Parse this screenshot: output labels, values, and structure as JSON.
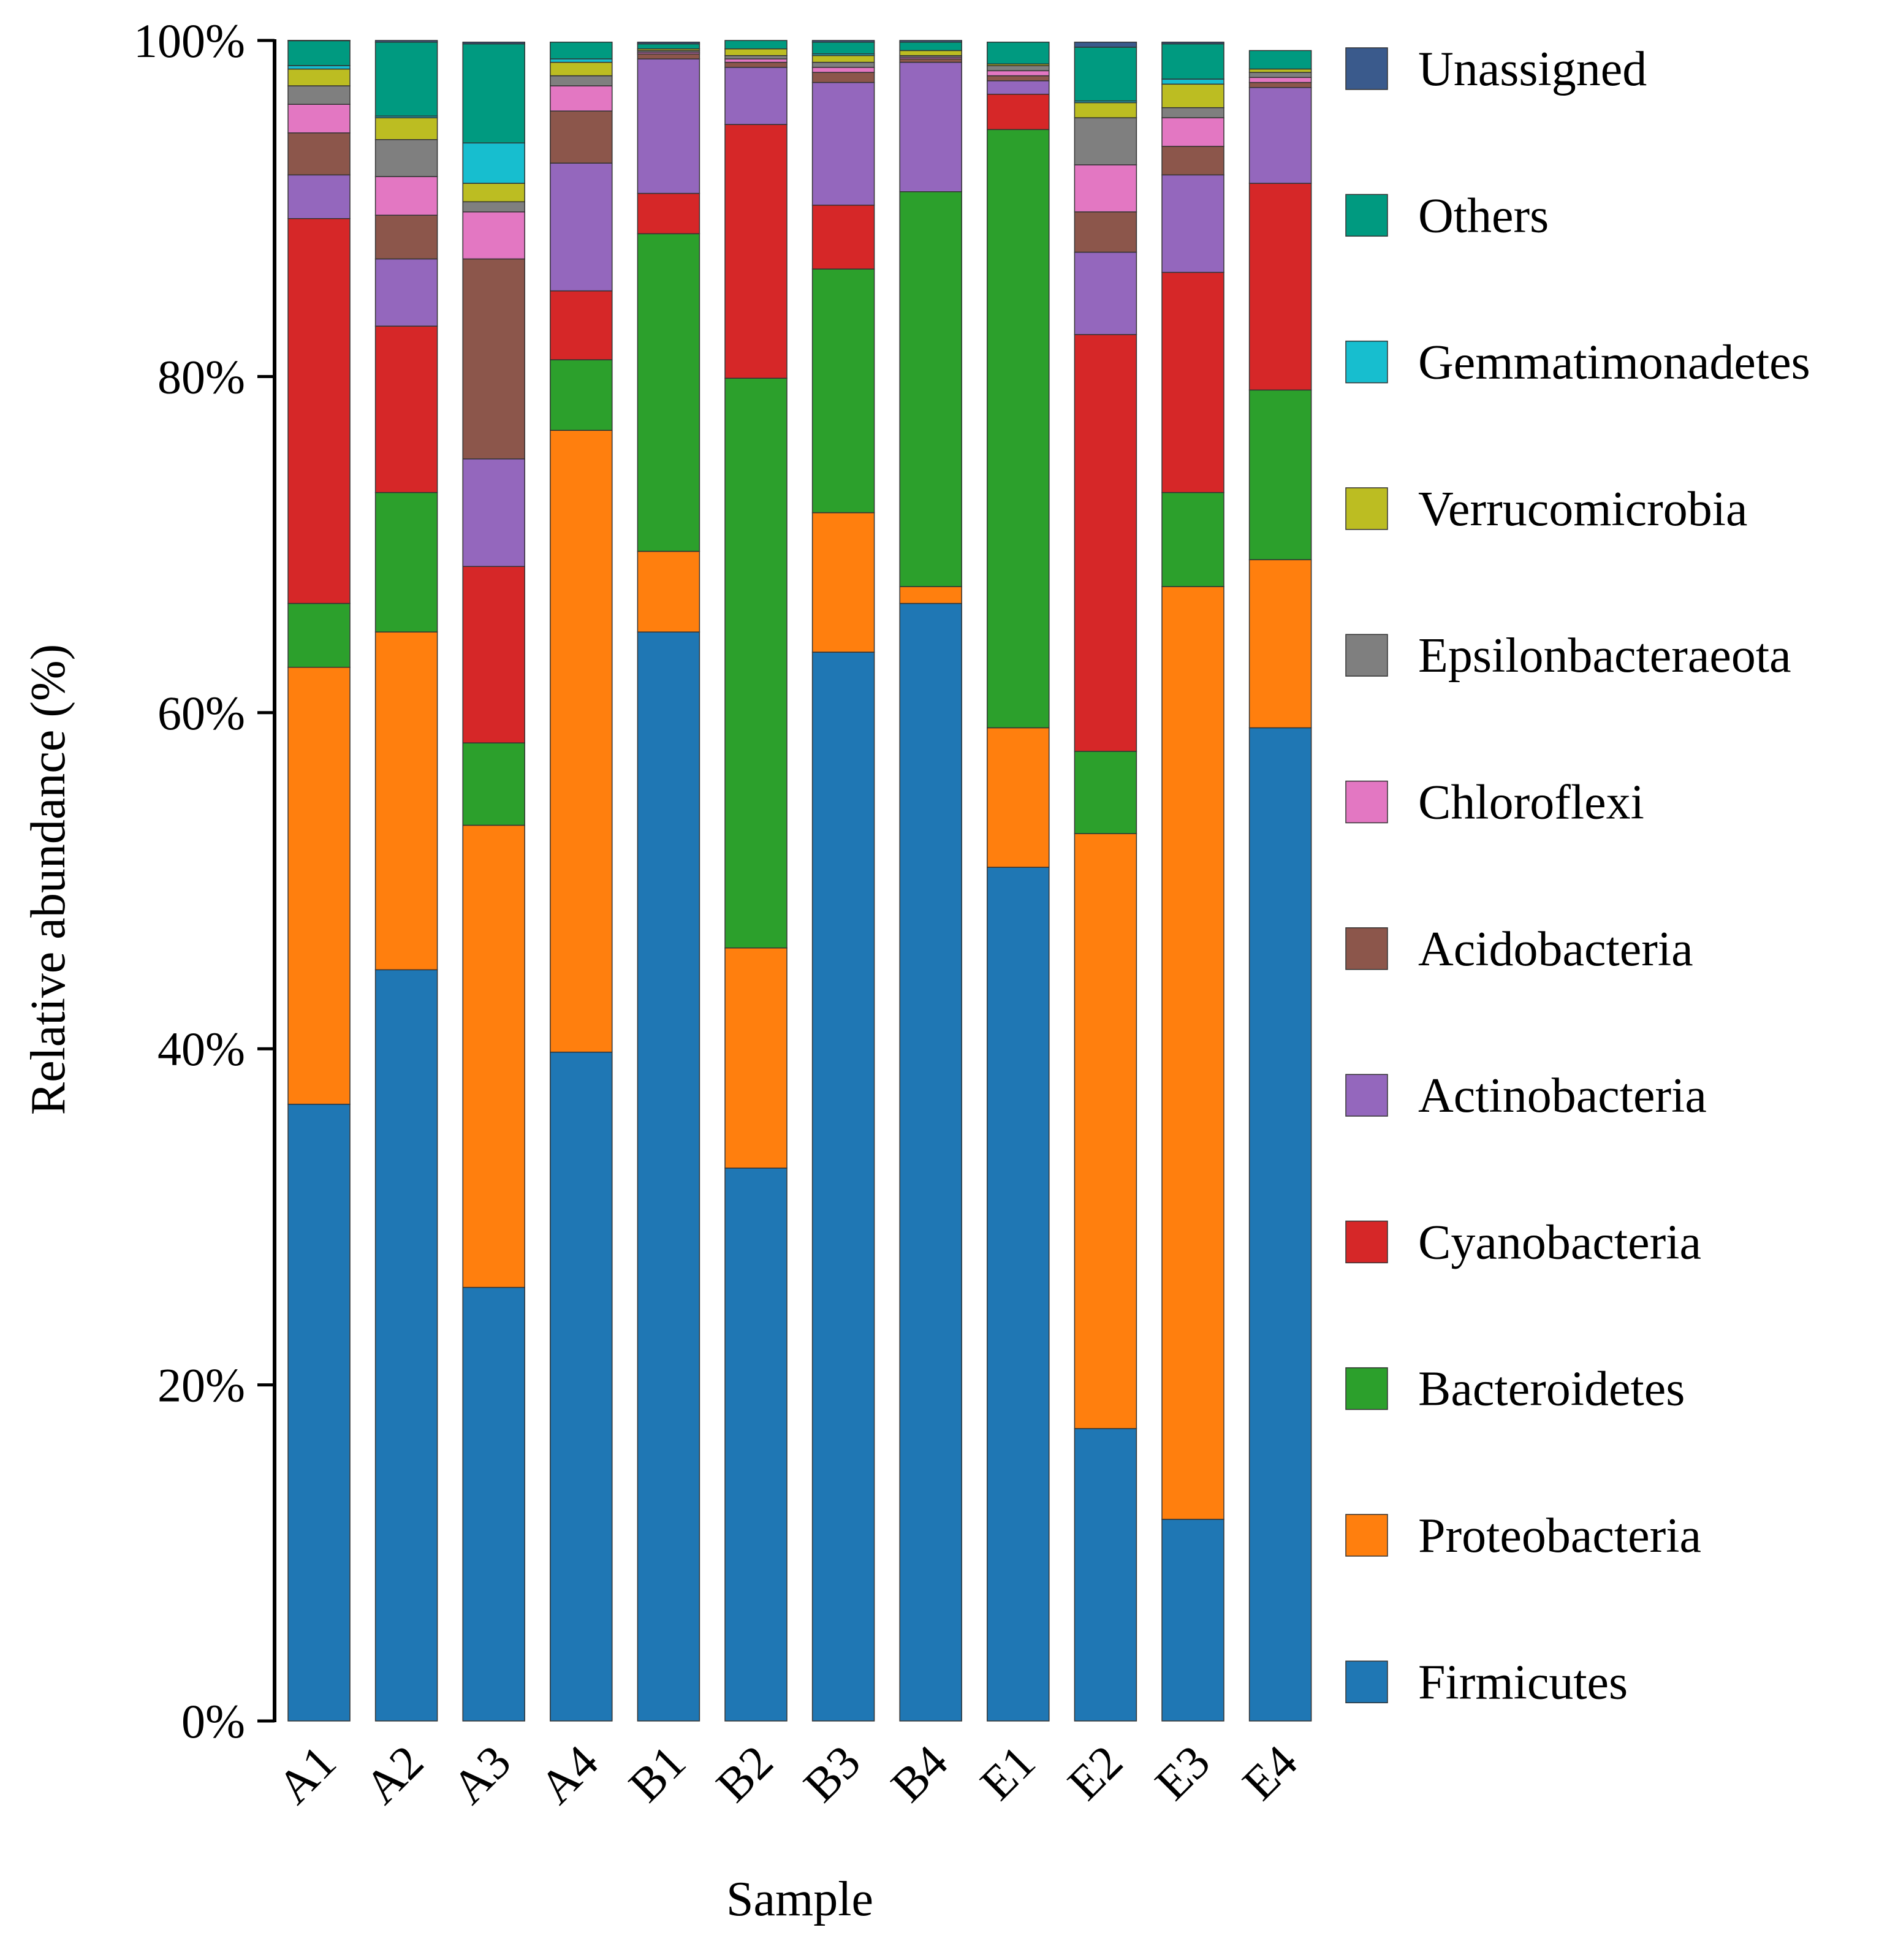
{
  "chart_data": {
    "type": "bar",
    "stacked": true,
    "title": "",
    "xlabel": "Sample",
    "ylabel": "Relative abundance (%)",
    "ylim": [
      0,
      100
    ],
    "yticks": [
      "0%",
      "20%",
      "40%",
      "60%",
      "80%",
      "100%"
    ],
    "legend_position": "right",
    "categories": [
      "A1",
      "A2",
      "A3",
      "A4",
      "B1",
      "B2",
      "B3",
      "B4",
      "E1",
      "E2",
      "E3",
      "E4"
    ],
    "series": [
      {
        "name": "Firmicutes",
        "color": "#1f77b4",
        "values": [
          36.7,
          44.7,
          25.8,
          39.8,
          64.8,
          32.9,
          63.6,
          66.5,
          50.8,
          17.4,
          12.0,
          59.1
        ]
      },
      {
        "name": "Proteobacteria",
        "color": "#ff7f0e",
        "values": [
          26.0,
          20.1,
          27.5,
          37.0,
          4.8,
          13.1,
          8.3,
          1.0,
          8.3,
          35.4,
          55.5,
          10.0
        ]
      },
      {
        "name": "Bacteroidetes",
        "color": "#2ca02c",
        "values": [
          3.8,
          8.3,
          4.9,
          4.2,
          18.9,
          33.9,
          14.5,
          23.5,
          35.6,
          4.9,
          5.6,
          10.1
        ]
      },
      {
        "name": "Cyanobacteria",
        "color": "#d62728",
        "values": [
          22.9,
          9.9,
          10.5,
          4.1,
          2.4,
          15.1,
          3.8,
          0.0,
          2.1,
          24.8,
          13.1,
          12.3
        ]
      },
      {
        "name": "Actinobacteria",
        "color": "#9467bd",
        "values": [
          2.6,
          4.0,
          6.4,
          7.6,
          8.0,
          3.4,
          7.3,
          7.7,
          0.8,
          4.9,
          5.8,
          5.7
        ]
      },
      {
        "name": "Acidobacteria",
        "color": "#8c564b",
        "values": [
          2.5,
          2.6,
          11.9,
          3.1,
          0.3,
          0.3,
          0.6,
          0.2,
          0.3,
          2.4,
          1.7,
          0.3
        ]
      },
      {
        "name": "Chloroflexi",
        "color": "#e377c2",
        "values": [
          1.7,
          2.3,
          2.8,
          1.5,
          0.1,
          0.2,
          0.3,
          0.1,
          0.3,
          2.8,
          1.7,
          0.3
        ]
      },
      {
        "name": "Epsilonbacteraeota",
        "color": "#7f7f7f",
        "values": [
          1.1,
          2.2,
          0.6,
          0.6,
          0.1,
          0.2,
          0.3,
          0.1,
          0.3,
          2.8,
          0.6,
          0.3
        ]
      },
      {
        "name": "Verrucomicrobia",
        "color": "#bcbd22",
        "values": [
          1.0,
          1.3,
          1.1,
          0.8,
          0.1,
          0.4,
          0.4,
          0.3,
          0.1,
          0.9,
          1.4,
          0.2
        ]
      },
      {
        "name": "Gemmatimonadetes",
        "color": "#17becf",
        "values": [
          0.2,
          0.1,
          2.4,
          0.2,
          0.0,
          0.0,
          0.1,
          0.0,
          0.0,
          0.1,
          0.3,
          0.0
        ]
      },
      {
        "name": "Others",
        "color": "#009a80",
        "values": [
          1.5,
          4.4,
          5.9,
          1.0,
          0.3,
          0.5,
          0.7,
          0.5,
          1.3,
          3.2,
          2.1,
          1.1
        ]
      },
      {
        "name": "Unassigned",
        "color": "#3a5a8c",
        "values": [
          0.1,
          0.1,
          0.1,
          0.0,
          0.1,
          0.0,
          0.1,
          0.1,
          0.0,
          0.3,
          0.1,
          0.0
        ]
      }
    ]
  }
}
